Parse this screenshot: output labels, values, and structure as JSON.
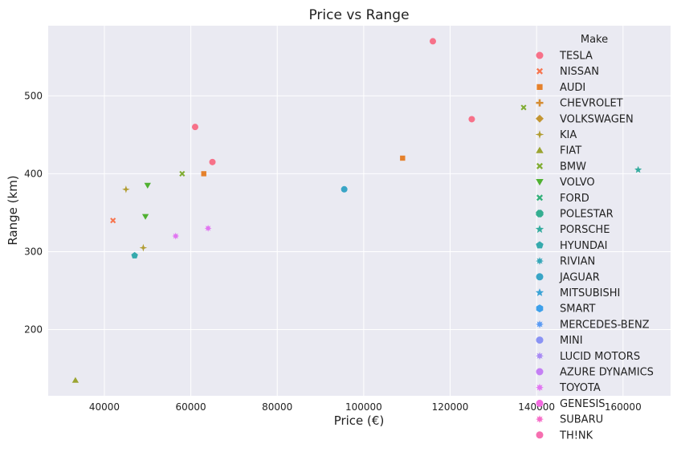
{
  "chart_data": {
    "type": "scatter",
    "title": "Price vs Range",
    "xlabel": "Price (€)",
    "ylabel": "Range (km)",
    "xlim": [
      27000,
      171000
    ],
    "ylim": [
      115,
      590
    ],
    "x_ticks": [
      40000,
      60000,
      80000,
      100000,
      120000,
      140000,
      160000
    ],
    "x_tick_labels": [
      "40000",
      "60000",
      "80000",
      "100000",
      "120000",
      "140000",
      "160000"
    ],
    "y_ticks": [
      200,
      300,
      400,
      500
    ],
    "y_tick_labels": [
      "200",
      "300",
      "400",
      "500"
    ],
    "grid": true,
    "background": "#eaeaf2",
    "legend_title": "Make",
    "legend_position": "top-right",
    "series": [
      {
        "name": "TESLA",
        "color": "#f77189",
        "marker": "circle",
        "points": [
          [
            116000,
            570
          ],
          [
            125000,
            470
          ],
          [
            61000,
            460
          ],
          [
            65000,
            415
          ]
        ]
      },
      {
        "name": "NISSAN",
        "color": "#f7754f",
        "marker": "x",
        "points": [
          [
            42000,
            340
          ]
        ]
      },
      {
        "name": "AUDI",
        "color": "#e5812c",
        "marker": "square",
        "points": [
          [
            109000,
            420
          ],
          [
            63000,
            400
          ]
        ]
      },
      {
        "name": "CHEVROLET",
        "color": "#d58c32",
        "marker": "plus",
        "points": []
      },
      {
        "name": "VOLKSWAGEN",
        "color": "#c39532",
        "marker": "diamond",
        "points": []
      },
      {
        "name": "KIA",
        "color": "#b19c31",
        "marker": "star4",
        "points": [
          [
            45000,
            380
          ],
          [
            49000,
            305
          ]
        ]
      },
      {
        "name": "FIAT",
        "color": "#9ba431",
        "marker": "triangle-up",
        "points": [
          [
            33300,
            135
          ]
        ]
      },
      {
        "name": "BMW",
        "color": "#80ac32",
        "marker": "x",
        "points": [
          [
            58000,
            400
          ],
          [
            137000,
            485
          ]
        ]
      },
      {
        "name": "VOLVO",
        "color": "#50b131",
        "marker": "triangle-down",
        "points": [
          [
            50000,
            385
          ],
          [
            49500,
            345
          ]
        ]
      },
      {
        "name": "FORD",
        "color": "#33b07a",
        "marker": "x",
        "points": []
      },
      {
        "name": "POLESTAR",
        "color": "#34ae91",
        "marker": "octagon",
        "points": []
      },
      {
        "name": "PORSCHE",
        "color": "#35ac9f",
        "marker": "star",
        "points": [
          [
            163500,
            405
          ]
        ]
      },
      {
        "name": "HYUNDAI",
        "color": "#36aaad",
        "marker": "pentagon",
        "points": [
          [
            47000,
            295
          ]
        ]
      },
      {
        "name": "RIVIAN",
        "color": "#37a7b9",
        "marker": "star8",
        "points": []
      },
      {
        "name": "JAGUAR",
        "color": "#39a5c6",
        "marker": "circle",
        "points": [
          [
            95500,
            380
          ]
        ]
      },
      {
        "name": "MITSUBISHI",
        "color": "#3ba3d6",
        "marker": "star",
        "points": []
      },
      {
        "name": "SMART",
        "color": "#3ea0ea",
        "marker": "hexagon",
        "points": []
      },
      {
        "name": "MERCEDES-BENZ",
        "color": "#5b9bf4",
        "marker": "star8",
        "points": []
      },
      {
        "name": "MINI",
        "color": "#8a93f4",
        "marker": "circle",
        "points": []
      },
      {
        "name": "LUCID MOTORS",
        "color": "#a88af4",
        "marker": "star8",
        "points": []
      },
      {
        "name": "AZURE DYNAMICS",
        "color": "#c47ff4",
        "marker": "circle",
        "points": []
      },
      {
        "name": "TOYOTA",
        "color": "#e176f1",
        "marker": "star8",
        "points": [
          [
            64000,
            330
          ],
          [
            56500,
            320
          ]
        ]
      },
      {
        "name": "GENESIS",
        "color": "#f36ae0",
        "marker": "circle",
        "points": []
      },
      {
        "name": "SUBARU",
        "color": "#f66dc8",
        "marker": "star8",
        "points": []
      },
      {
        "name": "TH!NK",
        "color": "#f66fb0",
        "marker": "circle",
        "points": []
      }
    ]
  }
}
